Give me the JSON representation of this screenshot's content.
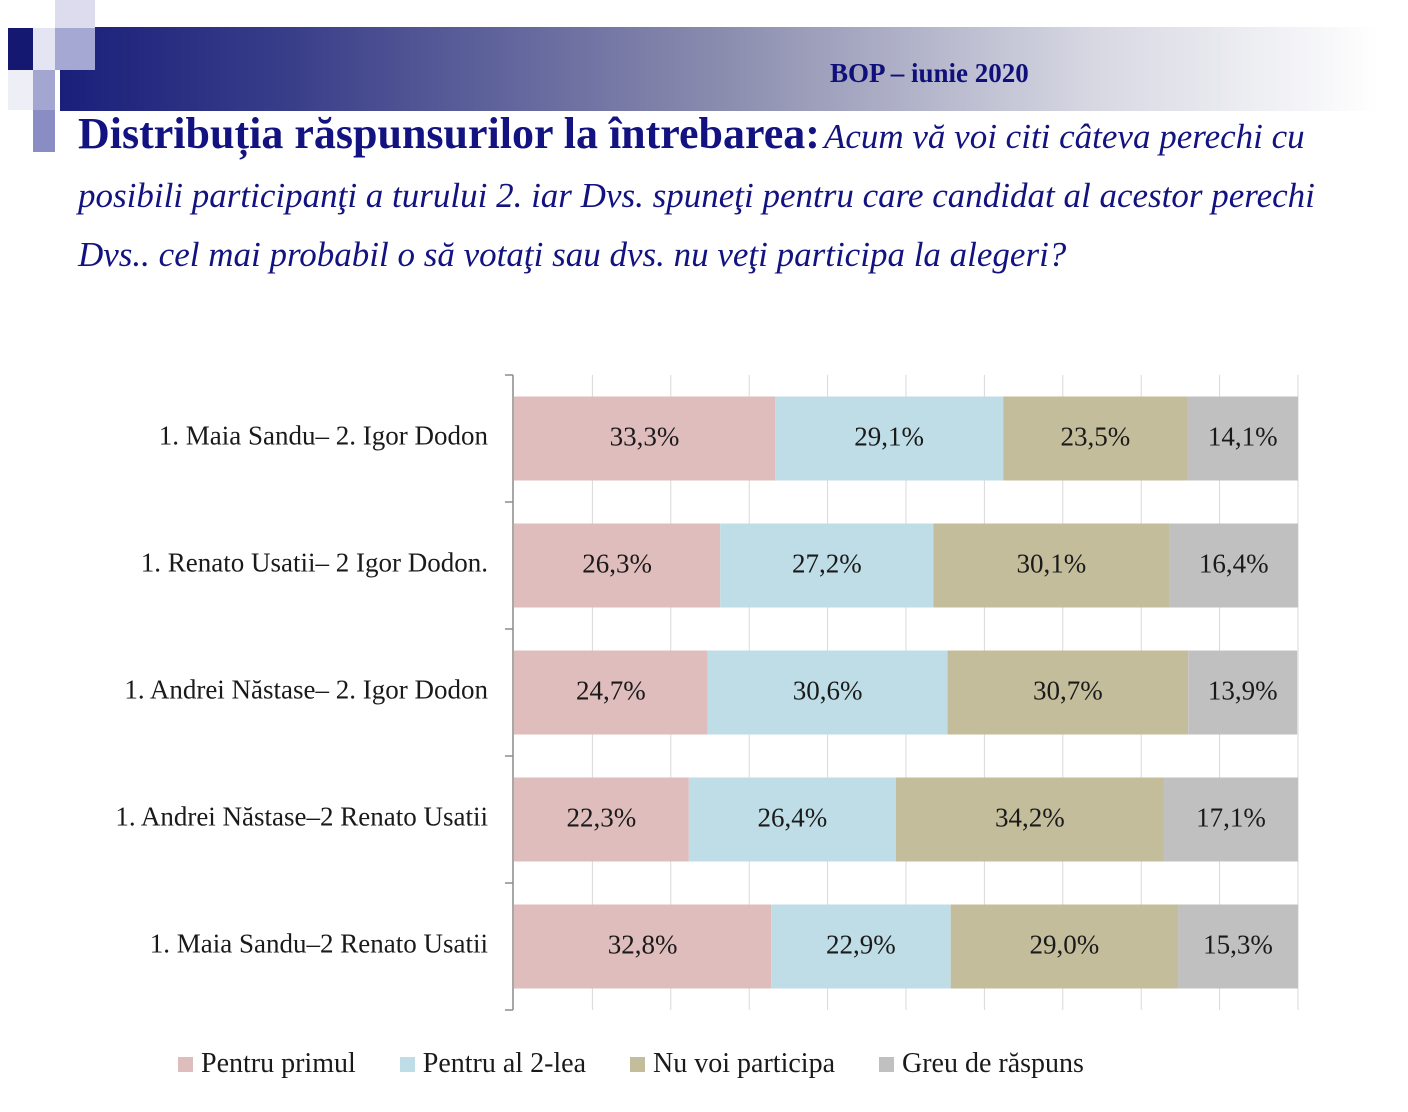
{
  "header": {
    "label": "BOP – iunie 2020"
  },
  "title": {
    "bold": "Distribuția răspunsurilor la întrebarea:",
    "italic": "Acum vă voi citi câteva perechi cu posibili participanţi a turului 2. iar Dvs. spuneţi pentru care candidat al acestor perechi Dvs.. cel mai probabil o să votaţi sau dvs. nu veţi participa la alegeri?"
  },
  "colors": {
    "banner_dark": "#1a1f7a",
    "title": "#121280",
    "pentru_primul": "#dfbdbc",
    "pentru_al_2lea": "#bfdde6",
    "nu_voi_participa": "#c4bd9b",
    "greu_de_raspuns": "#c0c0c0"
  },
  "chart_data": {
    "type": "bar",
    "orientation": "horizontal",
    "stacked": true,
    "percent_stacked": true,
    "grid": true,
    "legend_position": "bottom",
    "xlim": [
      0,
      100
    ],
    "categories": [
      "1. Maia Sandu– 2. Igor Dodon",
      "1. Renato Usatii– 2 Igor Dodon.",
      "1. Andrei Năstase– 2. Igor Dodon",
      "1. Andrei Năstase–2 Renato Usatii",
      "1. Maia Sandu–2 Renato Usatii"
    ],
    "series": [
      {
        "name": "Pentru primul",
        "color": "#dfbdbc",
        "values": [
          33.3,
          26.3,
          24.7,
          22.3,
          32.8
        ],
        "labels": [
          "33,3%",
          "26,3%",
          "24,7%",
          "22,3%",
          "32,8%"
        ]
      },
      {
        "name": "Pentru al 2-lea",
        "color": "#bfdde6",
        "values": [
          29.1,
          27.2,
          30.6,
          26.4,
          22.9
        ],
        "labels": [
          "29,1%",
          "27,2%",
          "30,6%",
          "26,4%",
          "22,9%"
        ]
      },
      {
        "name": "Nu voi participa",
        "color": "#c4bd9b",
        "values": [
          23.5,
          30.1,
          30.7,
          34.2,
          29.0
        ],
        "labels": [
          "23,5%",
          "30,1%",
          "30,7%",
          "34,2%",
          "29,0%"
        ]
      },
      {
        "name": "Greu de răspuns",
        "color": "#c0c0c0",
        "values": [
          14.1,
          16.4,
          13.9,
          17.1,
          15.3
        ],
        "labels": [
          "14,1%",
          "16,4%",
          "13,9%",
          "17,1%",
          "15,3%"
        ]
      }
    ]
  }
}
